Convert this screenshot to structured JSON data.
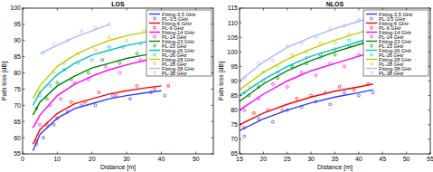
{
  "chart_data": [
    {
      "type": "line",
      "title": "LOS",
      "xlabel": "Distance [m]",
      "ylabel": "Path loss [dB]",
      "xlim": [
        0,
        55
      ],
      "ylim": [
        55,
        100
      ],
      "xticks": [
        0,
        10,
        20,
        30,
        40,
        50
      ],
      "yticks": [
        55,
        60,
        65,
        70,
        75,
        80,
        85,
        90,
        95,
        100
      ],
      "grid": false,
      "legend": "upper right",
      "series": [
        {
          "name": "Fitting-3.5 GHz",
          "type": "line",
          "line_style": "solid",
          "color": "#2a3cff",
          "x": [
            3,
            5,
            10,
            15,
            20,
            25,
            30,
            35,
            40
          ],
          "values": [
            56,
            61,
            66,
            69,
            70.5,
            72,
            73,
            73.8,
            74.5
          ]
        },
        {
          "name": "PL-3.5 GHz",
          "type": "scatter",
          "marker": "circle",
          "color": "#2a3cff",
          "x": [
            4,
            6,
            9,
            13,
            17,
            21,
            26,
            31,
            37,
            41
          ],
          "values": [
            58,
            60,
            64,
            68,
            70,
            70,
            73,
            72,
            74,
            73
          ]
        },
        {
          "name": "Fitting-6 GHz",
          "type": "line",
          "line_style": "solid",
          "color": "#ff0000",
          "x": [
            3,
            5,
            10,
            15,
            20,
            25,
            30,
            35,
            40
          ],
          "values": [
            58,
            62.5,
            67.5,
            70.5,
            72,
            73.5,
            74.5,
            75.3,
            76
          ]
        },
        {
          "name": "PL-6 GHz",
          "type": "scatter",
          "marker": "circle",
          "color": "#ff0000",
          "x": [
            4,
            7,
            10,
            14,
            18,
            22,
            27,
            33,
            38,
            42
          ],
          "values": [
            59,
            64,
            66,
            71,
            71,
            74,
            73,
            76,
            75,
            76
          ]
        },
        {
          "name": "Fitting-14 GHz",
          "type": "line",
          "line_style": "solid",
          "color": "#ff00ff",
          "x": [
            3,
            5,
            10,
            15,
            20,
            25,
            30,
            35,
            40
          ],
          "values": [
            63,
            67,
            73,
            76.5,
            79,
            81,
            82.5,
            83.8,
            85
          ]
        },
        {
          "name": "PL-14 GHz",
          "type": "scatter",
          "marker": "circle",
          "color": "#ff00ff",
          "x": [
            5,
            8,
            11,
            15,
            19,
            24,
            28,
            34,
            39,
            42
          ],
          "values": [
            64,
            70,
            72,
            77,
            78,
            82,
            80,
            84,
            86,
            84
          ]
        },
        {
          "name": "Fitting-23 GHz",
          "type": "line",
          "line_style": "solid",
          "color": "#008000",
          "x": [
            3,
            5,
            10,
            15,
            20,
            25,
            30,
            35,
            40
          ],
          "values": [
            67,
            71,
            76,
            79,
            81.5,
            83,
            84.5,
            85.5,
            86.5
          ]
        },
        {
          "name": "PL-23 GHz",
          "type": "scatter",
          "marker": "circle",
          "color": "#008000",
          "x": [
            4,
            7,
            10,
            14,
            19,
            23,
            28,
            33,
            38,
            42
          ],
          "values": [
            69,
            72,
            77,
            78,
            80,
            84,
            83,
            86,
            86,
            87
          ]
        },
        {
          "name": "Fitting-26 GHz",
          "type": "line",
          "line_style": "solid",
          "color": "#00c0c0",
          "x": [
            3,
            5,
            10,
            15,
            20,
            25,
            30,
            35,
            40
          ],
          "values": [
            70,
            74,
            79.5,
            83,
            85.5,
            87,
            88.5,
            89.5,
            90.5
          ]
        },
        {
          "name": "PL-26 GHz",
          "type": "scatter",
          "marker": "circle",
          "color": "#00c0c0",
          "x": [
            5,
            8,
            12,
            16,
            20,
            25,
            29,
            34,
            38,
            42
          ],
          "values": [
            73,
            76,
            81,
            83,
            84,
            88,
            88,
            89,
            91,
            90
          ]
        },
        {
          "name": "Fitting-28 GHz",
          "type": "line",
          "line_style": "solid",
          "color": "#c8c800",
          "x": [
            3,
            5,
            10,
            15,
            20,
            25,
            30,
            35,
            40
          ],
          "values": [
            72,
            76,
            82,
            85.5,
            88,
            90,
            91.5,
            92.5,
            93.5
          ]
        },
        {
          "name": "PL-28 GHz",
          "type": "scatter",
          "marker": "circle",
          "color": "#c8c800",
          "x": [
            5,
            9,
            12,
            16,
            21,
            25,
            30,
            35,
            39,
            42
          ],
          "values": [
            74,
            80,
            83,
            86,
            87,
            91,
            90,
            93,
            94,
            93
          ]
        },
        {
          "name": "Fitting-38 GHz",
          "type": "line",
          "line_style": "solid",
          "color": "#a8b8ff",
          "x": [
            5,
            10,
            15,
            20,
            25
          ],
          "values": [
            86,
            88.5,
            91,
            93,
            95
          ]
        },
        {
          "name": "PL-38 GHz",
          "type": "scatter",
          "marker": "circle",
          "color": "#a8b8ff",
          "x": [
            6,
            9,
            13,
            17,
            21,
            25
          ],
          "values": [
            86,
            89,
            90,
            93,
            94,
            95
          ]
        }
      ]
    },
    {
      "type": "line",
      "title": "NLOS",
      "xlabel": "Distance [m]",
      "ylabel": "Path loss [dB]",
      "xlim": [
        15,
        55
      ],
      "ylim": [
        65,
        115
      ],
      "xticks": [
        15,
        20,
        25,
        30,
        35,
        40,
        45,
        50,
        55
      ],
      "yticks": [
        65,
        70,
        75,
        80,
        85,
        90,
        95,
        100,
        105,
        110,
        115
      ],
      "grid": false,
      "legend": "upper right",
      "series": [
        {
          "name": "Fitting-3.5 GHz",
          "type": "line",
          "line_style": "solid",
          "color": "#2a3cff",
          "x": [
            15,
            20,
            25,
            30,
            35,
            40,
            43
          ],
          "values": [
            73,
            77,
            80,
            82.5,
            84.5,
            86,
            87
          ]
        },
        {
          "name": "PL-3.5 GHz",
          "type": "scatter",
          "marker": "circle",
          "color": "#2a3cff",
          "x": [
            16,
            19,
            22,
            25,
            28,
            31,
            34,
            37,
            40,
            43
          ],
          "values": [
            71,
            77,
            76,
            80,
            81,
            83,
            82,
            86,
            85,
            86
          ]
        },
        {
          "name": "Fitting-6 GHz",
          "type": "line",
          "line_style": "solid",
          "color": "#ff0000",
          "x": [
            15,
            20,
            25,
            30,
            35,
            40,
            43
          ],
          "values": [
            75,
            79,
            82,
            84.5,
            86.5,
            88,
            89
          ]
        },
        {
          "name": "PL-6 GHz",
          "type": "scatter",
          "marker": "circle",
          "color": "#ff0000",
          "x": [
            16,
            18,
            21,
            24,
            27,
            30,
            33,
            36,
            39,
            42
          ],
          "values": [
            74,
            79,
            80,
            80,
            84,
            85,
            86,
            88,
            87,
            89
          ]
        },
        {
          "name": "Fitting-14 GHz",
          "type": "line",
          "line_style": "solid",
          "color": "#ff00ff",
          "x": [
            15,
            20,
            25,
            30,
            35,
            40,
            43
          ],
          "values": [
            80,
            85.5,
            90,
            93.5,
            96,
            98.5,
            100
          ]
        },
        {
          "name": "PL-14 GHz",
          "type": "scatter",
          "marker": "circle",
          "color": "#ff00ff",
          "x": [
            16,
            19,
            22,
            25,
            28,
            31,
            34,
            37,
            40,
            43
          ],
          "values": [
            80,
            84,
            89,
            88,
            93,
            92,
            96,
            95,
            99,
            98
          ]
        },
        {
          "name": "Fitting-23 GHz",
          "type": "line",
          "line_style": "solid",
          "color": "#008000",
          "x": [
            15,
            20,
            25,
            30,
            35,
            40,
            43
          ],
          "values": [
            83,
            89,
            93.5,
            97,
            100,
            102.5,
            104
          ]
        },
        {
          "name": "PL-23 GHz",
          "type": "scatter",
          "marker": "circle",
          "color": "#008000",
          "x": [
            17,
            19,
            23,
            26,
            29,
            32,
            35,
            38,
            41,
            43
          ],
          "values": [
            85,
            88,
            91,
            95,
            96,
            99,
            99,
            102,
            103,
            104
          ]
        },
        {
          "name": "Fitting-26 GHz",
          "type": "line",
          "line_style": "solid",
          "color": "#00c0c0",
          "x": [
            15,
            20,
            25,
            30,
            35,
            40,
            43
          ],
          "values": [
            85,
            90.5,
            95,
            98.5,
            101,
            103.5,
            105
          ]
        },
        {
          "name": "PL-26 GHz",
          "type": "scatter",
          "marker": "circle",
          "color": "#00c0c0",
          "x": [
            16,
            20,
            23,
            26,
            29,
            32,
            35,
            38,
            41,
            43
          ],
          "values": [
            86,
            90,
            93,
            95,
            98,
            98,
            101,
            104,
            103,
            106
          ]
        },
        {
          "name": "Fitting-28 GHz",
          "type": "line",
          "line_style": "solid",
          "color": "#c8c800",
          "x": [
            15,
            20,
            25,
            30,
            35,
            40,
            43
          ],
          "values": [
            87,
            93,
            97.5,
            101,
            104,
            106.5,
            108
          ]
        },
        {
          "name": "PL-28 GHz",
          "type": "scatter",
          "marker": "circle",
          "color": "#c8c800",
          "x": [
            17,
            20,
            23,
            26,
            29,
            32,
            35,
            38,
            41,
            43
          ],
          "values": [
            88,
            93,
            95,
            99,
            100,
            103,
            103,
            106,
            107,
            109
          ]
        },
        {
          "name": "Fitting-38 GHz",
          "type": "line",
          "line_style": "solid",
          "color": "#a8b8ff",
          "x": [
            15,
            20,
            25,
            30,
            35,
            40,
            43
          ],
          "values": [
            90,
            96.5,
            101.5,
            105,
            108,
            110.5,
            112
          ]
        },
        {
          "name": "PL-38 GHz",
          "type": "scatter",
          "marker": "circle",
          "color": "#a8b8ff",
          "x": [
            16,
            19,
            22,
            25,
            28,
            31,
            34,
            37,
            40,
            43
          ],
          "values": [
            91,
            96,
            97,
            102,
            103,
            105,
            108,
            109,
            111,
            112
          ]
        }
      ]
    }
  ]
}
